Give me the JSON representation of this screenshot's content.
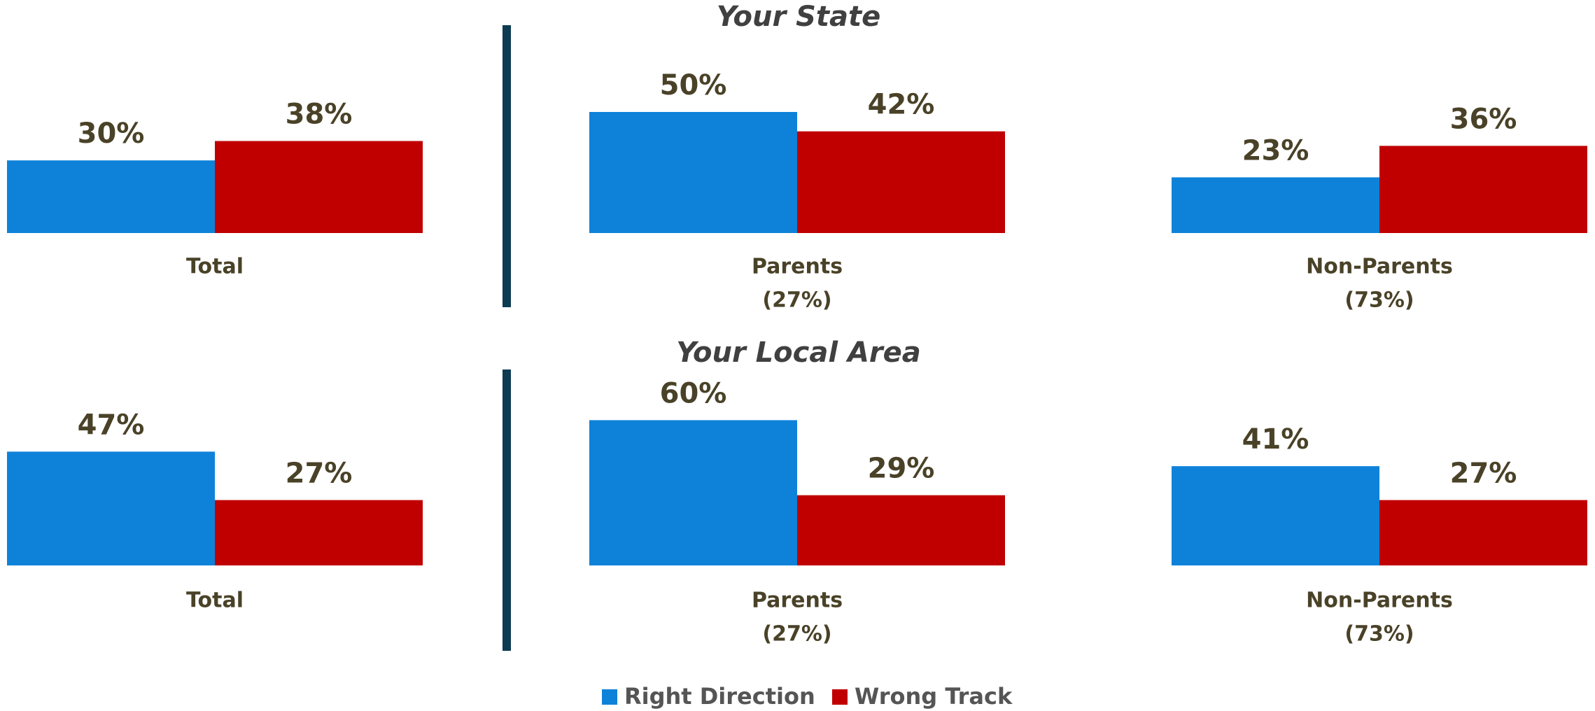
{
  "chart_data": [
    {
      "type": "bar",
      "title": "Your State",
      "categories": [
        "Total",
        "Parents",
        "Non-Parents"
      ],
      "category_sublabels": [
        null,
        "(27%)",
        "(73%)"
      ],
      "series": [
        {
          "name": "Right Direction",
          "color": "#0e82d9",
          "values": [
            30,
            50,
            23
          ],
          "value_labels": [
            "30%",
            "50%",
            "23%"
          ]
        },
        {
          "name": "Wrong Track",
          "color": "#c00000",
          "values": [
            38,
            42,
            36
          ],
          "value_labels": [
            "38%",
            "42%",
            "36%"
          ]
        }
      ]
    },
    {
      "type": "bar",
      "title": "Your Local Area",
      "categories": [
        "Total",
        "Parents",
        "Non-Parents"
      ],
      "category_sublabels": [
        null,
        "(27%)",
        "(73%)"
      ],
      "series": [
        {
          "name": "Right Direction",
          "color": "#0e82d9",
          "values": [
            47,
            60,
            41
          ],
          "value_labels": [
            "47%",
            "60%",
            "41%"
          ]
        },
        {
          "name": "Wrong Track",
          "color": "#c00000",
          "values": [
            27,
            29,
            27
          ],
          "value_labels": [
            "27%",
            "29%",
            "27%"
          ]
        }
      ]
    }
  ]
}
